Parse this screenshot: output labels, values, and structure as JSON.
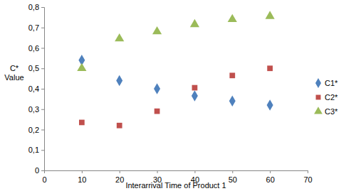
{
  "chart_data": {
    "type": "scatter",
    "xlabel": "Interarrival Time of Product 1",
    "ylabel": "C* Value",
    "x": [
      10,
      20,
      30,
      40,
      50,
      60
    ],
    "series": [
      {
        "name": "C1*",
        "color": "#4f81bd",
        "marker": "diamond",
        "values": [
          0.54,
          0.44,
          0.4,
          0.365,
          0.34,
          0.32
        ]
      },
      {
        "name": "C2*",
        "color": "#c0504d",
        "marker": "square",
        "values": [
          0.235,
          0.22,
          0.29,
          0.405,
          0.465,
          0.5
        ]
      },
      {
        "name": "C3*",
        "color": "#9bbb59",
        "marker": "triangle",
        "values": [
          0.5,
          0.645,
          0.68,
          0.715,
          0.74,
          0.755
        ]
      }
    ],
    "xlim": [
      0,
      70
    ],
    "xticks": [
      0,
      10,
      20,
      30,
      40,
      50,
      60,
      70
    ],
    "ylim": [
      0,
      0.8
    ],
    "yticks": [
      0,
      {
        "value": 0.1,
        "label": "0,1"
      },
      {
        "value": 0.2,
        "label": "0,2"
      },
      {
        "value": 0.3,
        "label": "0,3"
      },
      {
        "value": 0.4,
        "label": "0,4"
      },
      {
        "value": 0.5,
        "label": "0,5"
      },
      {
        "value": 0.6,
        "label": "0,6"
      },
      {
        "value": 0.7,
        "label": "0,7"
      },
      {
        "value": 0.8,
        "label": "0,8"
      }
    ],
    "grid": false,
    "legend": "right"
  }
}
